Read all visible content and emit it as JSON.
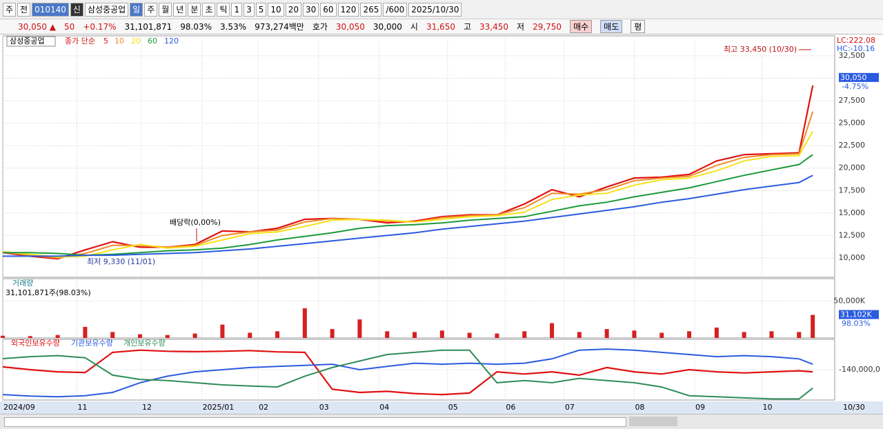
{
  "toolbar": {
    "market": "주",
    "prev": "전",
    "code": "010140",
    "badge": "신",
    "name": "삼성중공업",
    "periods": [
      "일",
      "주",
      "월",
      "년",
      "분",
      "초",
      "틱"
    ],
    "intervals": [
      "1",
      "3",
      "5",
      "10",
      "20",
      "30",
      "60",
      "120"
    ],
    "count": "265",
    "max": "/600",
    "date": "2025/10/30"
  },
  "info": [
    "30,050 ▲",
    "50",
    "+0.17%",
    "31,101,871",
    "98.03%",
    "3.53%",
    "973,274백만",
    "호가",
    "30,050",
    "30,000",
    "시",
    "31,650",
    "고",
    "33,450",
    "저",
    "29,750"
  ],
  "buttons": {
    "buy": "매수",
    "sell": "매도",
    "avg": "평"
  },
  "chart_data": [
    {
      "type": "line",
      "name": "삼성중공업",
      "legend_label": "종가 단순",
      "x": [
        0,
        2,
        4,
        6,
        8,
        10,
        12,
        14,
        16,
        18,
        20,
        22,
        24,
        26,
        28,
        30,
        32,
        34,
        36,
        38,
        40,
        42,
        44,
        46,
        48,
        50,
        52,
        54,
        56,
        58,
        59
      ],
      "xlim": [
        0,
        60.6
      ],
      "xticks": [
        {
          "value": 0,
          "label": "2024/09"
        },
        {
          "value": 5.4,
          "label": "11"
        },
        {
          "value": 10.1,
          "label": "12"
        },
        {
          "value": 14.5,
          "label": "2025/01"
        },
        {
          "value": 18.6,
          "label": "02"
        },
        {
          "value": 23,
          "label": "03"
        },
        {
          "value": 27.4,
          "label": "04"
        },
        {
          "value": 32.4,
          "label": "05"
        },
        {
          "value": 36.6,
          "label": "06"
        },
        {
          "value": 40.9,
          "label": "07"
        },
        {
          "value": 46,
          "label": "08"
        },
        {
          "value": 50.4,
          "label": "09"
        },
        {
          "value": 55.3,
          "label": "10"
        }
      ],
      "ylim": [
        7850,
        34720
      ],
      "yticks": [
        {
          "value": 10000,
          "label": "10,000"
        },
        {
          "value": 12500,
          "label": "12,500"
        },
        {
          "value": 15000,
          "label": "15,000"
        },
        {
          "value": 17500,
          "label": "17,500"
        },
        {
          "value": 20000,
          "label": "20,000"
        },
        {
          "value": 22500,
          "label": "22,500"
        },
        {
          "value": 25000,
          "label": "25,000"
        },
        {
          "value": 27500,
          "label": "27,500"
        },
        {
          "value": 30000,
          "label": "30,000"
        },
        {
          "value": 32500,
          "label": "32,500"
        }
      ],
      "grid": true,
      "series": [
        {
          "name": "5",
          "color": "#e01010",
          "values": [
            10600,
            10200,
            9900,
            10900,
            11800,
            11200,
            11200,
            11500,
            13000,
            12900,
            13300,
            14300,
            14400,
            14300,
            13900,
            14100,
            14600,
            14800,
            14800,
            16000,
            17600,
            16800,
            17900,
            18900,
            19000,
            19300,
            20800,
            21500,
            21600,
            21700,
            29200
          ]
        },
        {
          "name": "10",
          "color": "#f08a24",
          "values": [
            10650,
            10300,
            10000,
            10500,
            11400,
            11400,
            11200,
            11400,
            12500,
            12900,
            13100,
            14000,
            14400,
            14300,
            14100,
            14000,
            14500,
            14700,
            14800,
            15600,
            17200,
            17100,
            17600,
            18600,
            18900,
            19100,
            20300,
            21200,
            21500,
            21600,
            26300
          ]
        },
        {
          "name": "20",
          "color": "#f5e21a",
          "values": [
            10700,
            10400,
            10100,
            10200,
            10900,
            11500,
            11100,
            11300,
            12000,
            12700,
            12900,
            13500,
            14200,
            14300,
            14200,
            14000,
            14300,
            14600,
            14700,
            15100,
            16500,
            17000,
            17200,
            18100,
            18700,
            18900,
            19700,
            20800,
            21300,
            21400,
            24100
          ]
        },
        {
          "name": "60",
          "color": "#1a9a3a",
          "values": [
            10600,
            10600,
            10500,
            10300,
            10400,
            10600,
            10800,
            10900,
            11100,
            11500,
            12000,
            12400,
            12800,
            13300,
            13600,
            13700,
            13900,
            14200,
            14400,
            14600,
            15200,
            15800,
            16200,
            16800,
            17300,
            17800,
            18500,
            19200,
            19800,
            20400,
            21500
          ]
        },
        {
          "name": "120",
          "color": "#2a5ae0",
          "values": [
            10200,
            10200,
            10200,
            10300,
            10300,
            10400,
            10500,
            10600,
            10800,
            11000,
            11300,
            11600,
            11900,
            12200,
            12500,
            12800,
            13200,
            13500,
            13800,
            14100,
            14500,
            14900,
            15300,
            15700,
            16200,
            16600,
            17100,
            17600,
            18000,
            18400,
            19200
          ]
        }
      ],
      "current": {
        "value": 30050,
        "label": "30,050",
        "change": "-4.75%"
      },
      "annotations": {
        "high": "최고 33,450 (10/30)",
        "low": "최저 9,330 (11/01)",
        "dividend": "배당락(0,00%)",
        "lc": "LC:222.08",
        "hc": "HC:-10.16"
      }
    },
    {
      "type": "bar",
      "title": "거래량",
      "subtitle": "31,101,871주(98.03%)",
      "x": [
        0,
        2,
        4,
        6,
        8,
        10,
        12,
        14,
        16,
        18,
        20,
        22,
        24,
        26,
        28,
        30,
        32,
        34,
        36,
        38,
        40,
        42,
        44,
        46,
        48,
        50,
        52,
        54,
        56,
        58,
        59
      ],
      "xlim": [
        0,
        60.6
      ],
      "ylim": [
        0,
        80000
      ],
      "yticks": [
        {
          "value": 50000,
          "label": "50,000K"
        }
      ],
      "color": "#d62020",
      "values": [
        3000,
        2500,
        4000,
        15000,
        8000,
        5000,
        4000,
        6000,
        18000,
        7000,
        9000,
        40000,
        12000,
        25000,
        9000,
        8000,
        10000,
        7000,
        6000,
        9000,
        20000,
        8000,
        12000,
        10000,
        7000,
        9000,
        14000,
        8000,
        9000,
        8000,
        31102
      ],
      "current": {
        "value": 31102,
        "label": "31,102K",
        "ratio": "98.03%"
      }
    },
    {
      "type": "line",
      "x": [
        0,
        2,
        4,
        6,
        8,
        10,
        12,
        14,
        16,
        18,
        20,
        22,
        24,
        26,
        28,
        30,
        32,
        34,
        36,
        38,
        40,
        42,
        44,
        46,
        48,
        50,
        52,
        54,
        56,
        58,
        59
      ],
      "xlim": [
        0,
        60.6
      ],
      "ylim": [
        -280000,
        0
      ],
      "yticks": [
        {
          "value": -140000,
          "label": "-140,000,0"
        }
      ],
      "end_label": "10/30",
      "series": [
        {
          "name": "외국인보유수량",
          "color": "#e01010",
          "values": [
            -127000,
            -140000,
            -150000,
            -153000,
            -60000,
            -50000,
            -55000,
            -57000,
            -55000,
            -52000,
            -58000,
            -60000,
            -230000,
            -245000,
            -240000,
            -250000,
            -255000,
            -248000,
            -150000,
            -160000,
            -150000,
            -165000,
            -130000,
            -150000,
            -160000,
            -140000,
            -150000,
            -155000,
            -150000,
            -145000,
            -150000
          ]
        },
        {
          "name": "기관보유수량",
          "color": "#2a5ae0",
          "values": [
            -255000,
            -262000,
            -265000,
            -260000,
            -245000,
            -200000,
            -170000,
            -150000,
            -140000,
            -130000,
            -125000,
            -120000,
            -115000,
            -140000,
            -125000,
            -110000,
            -115000,
            -110000,
            -115000,
            -110000,
            -90000,
            -50000,
            -45000,
            -50000,
            -60000,
            -70000,
            -80000,
            -75000,
            -80000,
            -90000,
            -115000
          ]
        },
        {
          "name": "개인보유수량",
          "color": "#2e8b57",
          "values": [
            -89000,
            -80000,
            -75000,
            -85000,
            -165000,
            -185000,
            -190000,
            -200000,
            -210000,
            -215000,
            -220000,
            -170000,
            -130000,
            -100000,
            -70000,
            -60000,
            -50000,
            -50000,
            -200000,
            -190000,
            -200000,
            -180000,
            -190000,
            -200000,
            -220000,
            -260000,
            -265000,
            -270000,
            -275000,
            -275000,
            -225000
          ]
        }
      ]
    }
  ]
}
